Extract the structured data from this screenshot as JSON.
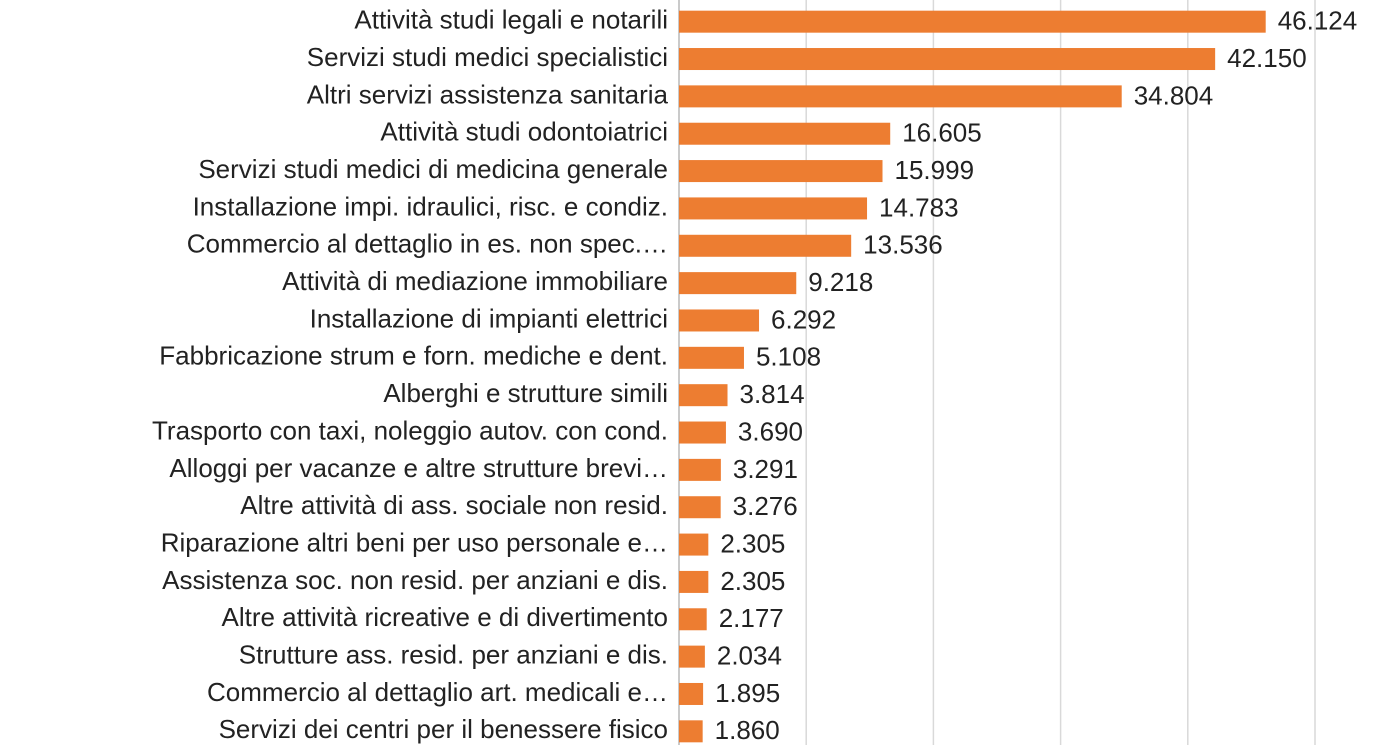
{
  "chart_data": {
    "type": "bar",
    "orientation": "horizontal",
    "categories": [
      "Attività studi legali e notarili",
      "Servizi studi medici specialistici",
      "Altri servizi assistenza sanitaria",
      "Attività studi odontoiatrici",
      "Servizi studi medici di medicina generale",
      "Installazione impi. idraulici, risc. e condiz.",
      "Commercio al dettaglio in es. non spec.…",
      "Attività di mediazione immobiliare",
      "Installazione di impianti elettrici",
      "Fabbricazione strum e forn. mediche e dent.",
      "Alberghi e strutture simili",
      "Trasporto con taxi, noleggio autov. con cond.",
      "Alloggi per vacanze e altre strutture brevi…",
      "Altre attività di ass. sociale non resid.",
      "Riparazione altri beni per uso personale e…",
      "Assistenza soc. non resid. per anziani e dis.",
      "Altre attività ricreative e di divertimento",
      "Strutture ass. resid. per anziani e dis.",
      "Commercio al dettaglio art. medicali e…",
      "Servizi dei centri per il benessere fisico"
    ],
    "values": [
      46124,
      42150,
      34804,
      16605,
      15999,
      14783,
      13536,
      9218,
      6292,
      5108,
      3814,
      3690,
      3291,
      3276,
      2305,
      2305,
      2177,
      2034,
      1895,
      1860
    ],
    "value_labels": [
      "46.124",
      "42.150",
      "34.804",
      "16.605",
      "15.999",
      "14.783",
      "13.536",
      "9.218",
      "6.292",
      "5.108",
      "3.814",
      "3.690",
      "3.291",
      "3.276",
      "2.305",
      "2.305",
      "2.177",
      "2.034",
      "1.895",
      "1.860"
    ],
    "color": "#ed7d31",
    "xlim": [
      0,
      50000
    ],
    "xticks": [
      0,
      10000,
      20000,
      30000,
      40000,
      50000
    ],
    "grid": true
  }
}
